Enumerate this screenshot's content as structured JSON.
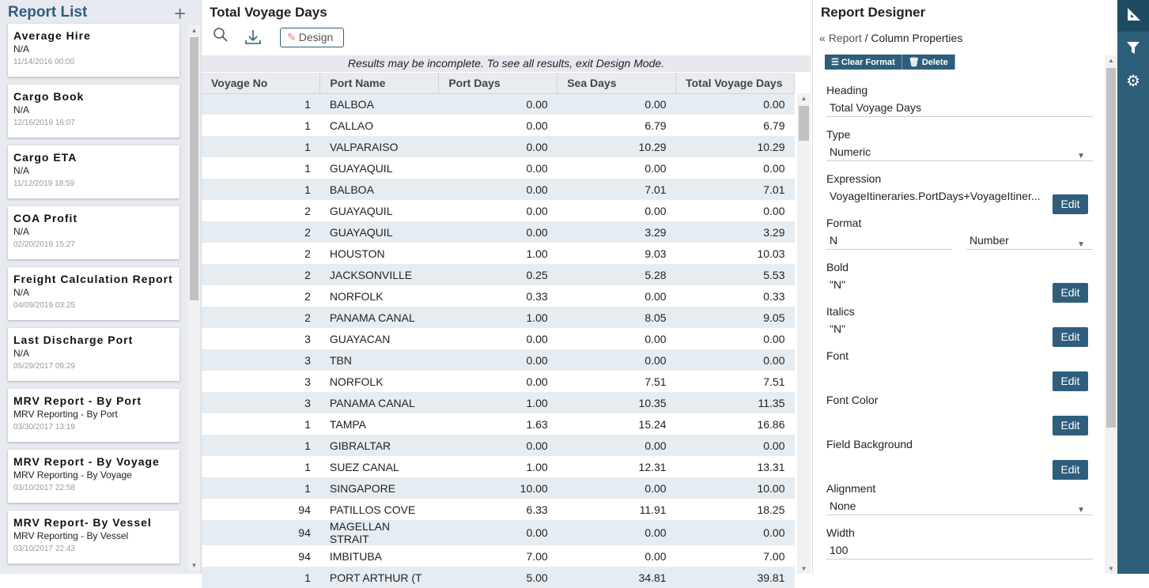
{
  "report_list": {
    "title": "Report List",
    "items": [
      {
        "name": "Average Hire",
        "sub": "N/A",
        "date": "11/14/2016 00:00"
      },
      {
        "name": "Cargo Book",
        "sub": "N/A",
        "date": "12/16/2019 16:07"
      },
      {
        "name": "Cargo ETA",
        "sub": "N/A",
        "date": "11/12/2019 18:59"
      },
      {
        "name": "COA Profit",
        "sub": "N/A",
        "date": "02/20/2019 15:27"
      },
      {
        "name": "Freight Calculation Report",
        "sub": "N/A",
        "date": "04/09/2019 03:25"
      },
      {
        "name": "Last Discharge Port",
        "sub": "N/A",
        "date": "05/29/2017 09:29"
      },
      {
        "name": "MRV Report - By Port",
        "sub": "MRV Reporting - By Port",
        "date": "03/30/2017 13:19"
      },
      {
        "name": "MRV Report - By Voyage",
        "sub": "MRV Reporting - By Voyage",
        "date": "03/10/2017 22:58"
      },
      {
        "name": "MRV Report- By Vessel",
        "sub": "MRV Reporting - By Vessel",
        "date": "03/10/2017 22:43"
      }
    ]
  },
  "main": {
    "title": "Total Voyage Days",
    "design_label": "Design",
    "notice": "Results may be incomplete. To see all results, exit Design Mode.",
    "columns": [
      "Voyage No",
      "Port Name",
      "Port Days",
      "Sea Days",
      "Total Voyage Days"
    ],
    "rows": [
      [
        "1",
        "BALBOA",
        "0.00",
        "0.00",
        "0.00"
      ],
      [
        "1",
        "CALLAO",
        "0.00",
        "6.79",
        "6.79"
      ],
      [
        "1",
        "VALPARAISO",
        "0.00",
        "10.29",
        "10.29"
      ],
      [
        "1",
        "GUAYAQUIL",
        "0.00",
        "0.00",
        "0.00"
      ],
      [
        "1",
        "BALBOA",
        "0.00",
        "7.01",
        "7.01"
      ],
      [
        "2",
        "GUAYAQUIL",
        "0.00",
        "0.00",
        "0.00"
      ],
      [
        "2",
        "GUAYAQUIL",
        "0.00",
        "3.29",
        "3.29"
      ],
      [
        "2",
        "HOUSTON",
        "1.00",
        "9.03",
        "10.03"
      ],
      [
        "2",
        "JACKSONVILLE",
        "0.25",
        "5.28",
        "5.53"
      ],
      [
        "2",
        "NORFOLK",
        "0.33",
        "0.00",
        "0.33"
      ],
      [
        "2",
        "PANAMA CANAL",
        "1.00",
        "8.05",
        "9.05"
      ],
      [
        "3",
        "GUAYACAN",
        "0.00",
        "0.00",
        "0.00"
      ],
      [
        "3",
        "TBN",
        "0.00",
        "0.00",
        "0.00"
      ],
      [
        "3",
        "NORFOLK",
        "0.00",
        "7.51",
        "7.51"
      ],
      [
        "3",
        "PANAMA CANAL",
        "1.00",
        "10.35",
        "11.35"
      ],
      [
        "1",
        "TAMPA",
        "1.63",
        "15.24",
        "16.86"
      ],
      [
        "1",
        "GIBRALTAR",
        "0.00",
        "0.00",
        "0.00"
      ],
      [
        "1",
        "SUEZ CANAL",
        "1.00",
        "12.31",
        "13.31"
      ],
      [
        "1",
        "SINGAPORE",
        "10.00",
        "0.00",
        "10.00"
      ],
      [
        "94",
        "PATILLOS COVE",
        "6.33",
        "11.91",
        "18.25"
      ],
      [
        "94",
        "MAGELLAN STRAIT",
        "0.00",
        "0.00",
        "0.00"
      ],
      [
        "94",
        "IMBITUBA",
        "7.00",
        "0.00",
        "7.00"
      ],
      [
        "1",
        "PORT ARTHUR (T",
        "5.00",
        "34.81",
        "39.81"
      ]
    ]
  },
  "designer": {
    "title": "Report Designer",
    "crumb_link": "Report",
    "crumb_sep": "/",
    "crumb_current": "Column Properties",
    "clear_format": "Clear Format",
    "delete": "Delete",
    "edit_label": "Edit",
    "heading": {
      "label": "Heading",
      "value": "Total Voyage Days"
    },
    "type": {
      "label": "Type",
      "value": "Numeric"
    },
    "expression": {
      "label": "Expression",
      "value": "VoyageItineraries.PortDays+VoyageItiner..."
    },
    "format": {
      "label": "Format",
      "value": "N",
      "kind": "Number"
    },
    "bold": {
      "label": "Bold",
      "value": "\"N\""
    },
    "italics": {
      "label": "Italics",
      "value": "\"N\""
    },
    "font": {
      "label": "Font"
    },
    "font_color": {
      "label": "Font Color"
    },
    "field_background": {
      "label": "Field Background"
    },
    "alignment": {
      "label": "Alignment",
      "value": "None"
    },
    "width": {
      "label": "Width",
      "value": "100"
    }
  },
  "colors": {
    "accent": "#2e5e7c",
    "rail": "#2e5f7a",
    "row_alt": "#e6edf2"
  }
}
